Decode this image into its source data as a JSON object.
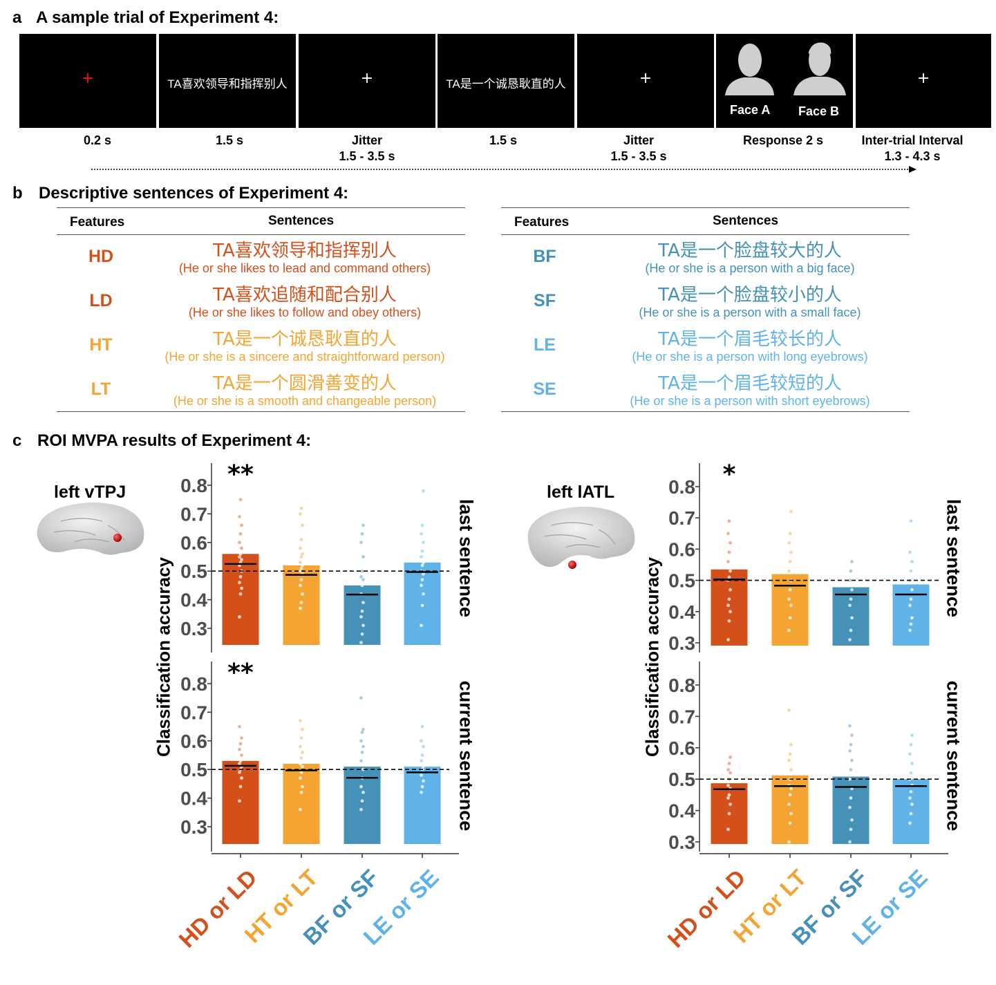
{
  "panel_a": {
    "letter": "a",
    "title": "A sample trial of Experiment 4:",
    "frames": [
      {
        "kind": "fixation",
        "symbol": "+",
        "color": "#e8141b",
        "timing": [
          "0.2 s"
        ]
      },
      {
        "kind": "sentence",
        "text": "TA喜欢领导和指挥别人",
        "timing": [
          "1.5 s"
        ]
      },
      {
        "kind": "fixation",
        "symbol": "+",
        "color": "#ffffff",
        "timing": [
          "Jitter",
          "1.5 - 3.5 s"
        ]
      },
      {
        "kind": "sentence",
        "text": "TA是一个诚恳耿直的人",
        "timing": [
          "1.5 s"
        ]
      },
      {
        "kind": "fixation",
        "symbol": "+",
        "color": "#ffffff",
        "timing": [
          "Jitter",
          "1.5 - 3.5 s"
        ]
      },
      {
        "kind": "response",
        "face_a": "Face A",
        "face_b": "Face B",
        "timing": [
          "Response 2 s"
        ]
      },
      {
        "kind": "fixation",
        "symbol": "+",
        "color": "#ffffff",
        "timing": [
          "Inter-trial Interval",
          "1.3 - 4.3 s"
        ]
      }
    ]
  },
  "panel_b": {
    "letter": "b",
    "title": "Descriptive sentences of Experiment 4:",
    "col_features": "Features",
    "col_sentences": "Sentences",
    "left": [
      {
        "feature": "HD",
        "cn": "TA喜欢领导和指挥别人",
        "en": "(He or she likes to lead and command others)",
        "color": "#d4501b"
      },
      {
        "feature": "LD",
        "cn": "TA喜欢追随和配合别人",
        "en": "(He or she likes to follow and obey others)",
        "color": "#d4501b"
      },
      {
        "feature": "HT",
        "cn": "TA是一个诚恳耿直的人",
        "en": "(He or she is a sincere and straightforward person)",
        "color": "#f4a433"
      },
      {
        "feature": "LT",
        "cn": "TA是一个圆滑善变的人",
        "en": "(He or she is a smooth and changeable person)",
        "color": "#f4a433"
      }
    ],
    "right": [
      {
        "feature": "BF",
        "cn": "TA是一个脸盘较大的人",
        "en": "(He or she is a person with a big face)",
        "color": "#4591b8"
      },
      {
        "feature": "SF",
        "cn": "TA是一个脸盘较小的人",
        "en": "(He or she is a person with a small face)",
        "color": "#4591b8"
      },
      {
        "feature": "LE",
        "cn": "TA是一个眉毛较长的人",
        "en": "(He or she is a person with long eyebrows)",
        "color": "#5fb3e8"
      },
      {
        "feature": "SE",
        "cn": "TA是一个眉毛较短的人",
        "en": "(He or she is a person with short eyebrows)",
        "color": "#5fb3e8"
      }
    ]
  },
  "panel_c": {
    "letter": "c",
    "title": "ROI MVPA results of Experiment 4:"
  },
  "chart_data": [
    {
      "type": "bar",
      "roi": "left vTPJ",
      "ylabel": "Classification accuracy",
      "categories": [
        "HD or LD",
        "HT or LT",
        "BF or SF",
        "LE or SE"
      ],
      "category_colors": [
        "#d4501b",
        "#f4a433",
        "#4591b8",
        "#5fb3e8"
      ],
      "chance": 0.5,
      "ylim": [
        0.25,
        0.85
      ],
      "yticks": [
        "0.3",
        "0.4",
        "0.5",
        "0.6",
        "0.7",
        "0.8"
      ],
      "facets": [
        {
          "label": "last sentence",
          "bar_means": [
            0.56,
            0.52,
            0.45,
            0.53
          ],
          "medians": [
            0.525,
            0.487,
            0.418,
            0.497
          ],
          "significance": [
            "**",
            "",
            "",
            ""
          ],
          "points": [
            [
              0.34,
              0.42,
              0.44,
              0.46,
              0.48,
              0.5,
              0.52,
              0.53,
              0.54,
              0.55,
              0.56,
              0.58,
              0.6,
              0.63,
              0.66,
              0.69,
              0.75
            ],
            [
              0.37,
              0.39,
              0.42,
              0.45,
              0.47,
              0.49,
              0.5,
              0.51,
              0.52,
              0.53,
              0.55,
              0.56,
              0.58,
              0.61,
              0.66,
              0.7,
              0.72
            ],
            [
              0.25,
              0.28,
              0.31,
              0.34,
              0.36,
              0.39,
              0.42,
              0.45,
              0.47,
              0.48,
              0.5,
              0.55,
              0.6,
              0.63,
              0.66
            ],
            [
              0.31,
              0.38,
              0.42,
              0.45,
              0.47,
              0.49,
              0.5,
              0.52,
              0.53,
              0.55,
              0.57,
              0.6,
              0.63,
              0.66,
              0.78
            ]
          ]
        },
        {
          "label": "current sentence",
          "bar_means": [
            0.53,
            0.52,
            0.51,
            0.51
          ],
          "medians": [
            0.513,
            0.497,
            0.471,
            0.49
          ],
          "significance": [
            "**",
            "",
            "",
            ""
          ],
          "points": [
            [
              0.39,
              0.44,
              0.47,
              0.49,
              0.5,
              0.51,
              0.52,
              0.53,
              0.55,
              0.57,
              0.59,
              0.61,
              0.65
            ],
            [
              0.36,
              0.42,
              0.44,
              0.47,
              0.49,
              0.51,
              0.52,
              0.54,
              0.56,
              0.58,
              0.61,
              0.64,
              0.67
            ],
            [
              0.36,
              0.39,
              0.42,
              0.44,
              0.47,
              0.5,
              0.53,
              0.56,
              0.58,
              0.6,
              0.63,
              0.64,
              0.75
            ],
            [
              0.42,
              0.44,
              0.46,
              0.48,
              0.5,
              0.51,
              0.53,
              0.55,
              0.58,
              0.6,
              0.65
            ]
          ]
        }
      ]
    },
    {
      "type": "bar",
      "roi": "left lATL",
      "ylabel": "Classification accuracy",
      "categories": [
        "HD or LD",
        "HT or LT",
        "BF or SF",
        "LE or SE"
      ],
      "category_colors": [
        "#d4501b",
        "#f4a433",
        "#4591b8",
        "#5fb3e8"
      ],
      "chance": 0.5,
      "ylim": [
        0.27,
        0.85
      ],
      "yticks": [
        "0.3",
        "0.4",
        "0.5",
        "0.6",
        "0.7",
        "0.8"
      ],
      "facets": [
        {
          "label": "last sentence",
          "bar_means": [
            0.535,
            0.52,
            0.478,
            0.487
          ],
          "medians": [
            0.503,
            0.483,
            0.455,
            0.455
          ],
          "significance": [
            "*",
            "",
            "",
            ""
          ],
          "points": [
            [
              0.31,
              0.37,
              0.4,
              0.42,
              0.44,
              0.47,
              0.5,
              0.51,
              0.53,
              0.56,
              0.59,
              0.62,
              0.65,
              0.69
            ],
            [
              0.34,
              0.38,
              0.42,
              0.44,
              0.47,
              0.5,
              0.53,
              0.56,
              0.59,
              0.62,
              0.65,
              0.72
            ],
            [
              0.31,
              0.34,
              0.38,
              0.42,
              0.44,
              0.47,
              0.5,
              0.53,
              0.56
            ],
            [
              0.34,
              0.36,
              0.38,
              0.42,
              0.44,
              0.47,
              0.5,
              0.53,
              0.56,
              0.59,
              0.69
            ]
          ]
        },
        {
          "label": "current sentence",
          "bar_means": [
            0.487,
            0.512,
            0.508,
            0.5
          ],
          "medians": [
            0.468,
            0.478,
            0.475,
            0.478
          ],
          "significance": [
            "",
            "",
            "",
            ""
          ],
          "points": [
            [
              0.34,
              0.39,
              0.42,
              0.44,
              0.45,
              0.47,
              0.48,
              0.5,
              0.52,
              0.53,
              0.55,
              0.57
            ],
            [
              0.3,
              0.36,
              0.39,
              0.42,
              0.45,
              0.47,
              0.48,
              0.5,
              0.53,
              0.56,
              0.58,
              0.61,
              0.72
            ],
            [
              0.3,
              0.34,
              0.37,
              0.41,
              0.44,
              0.47,
              0.5,
              0.53,
              0.56,
              0.59,
              0.61,
              0.64,
              0.67
            ],
            [
              0.36,
              0.39,
              0.42,
              0.44,
              0.46,
              0.48,
              0.5,
              0.52,
              0.55,
              0.58,
              0.61,
              0.64
            ]
          ]
        }
      ]
    }
  ]
}
